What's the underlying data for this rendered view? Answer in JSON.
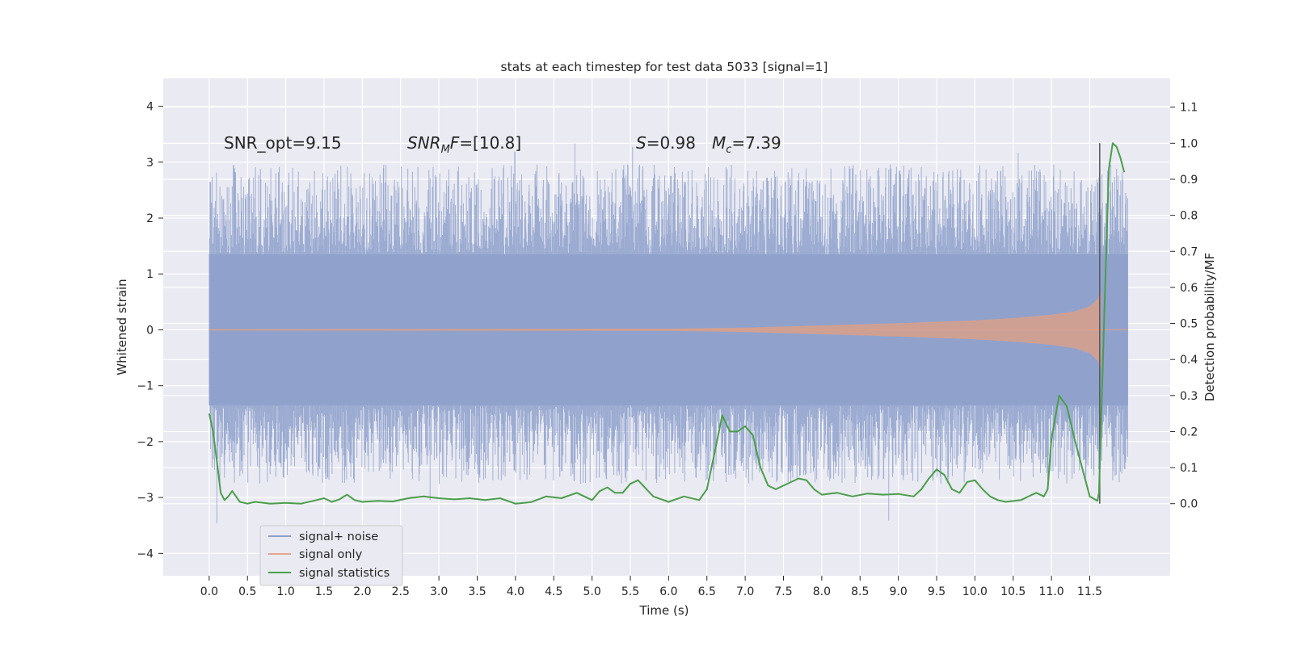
{
  "chart_data": {
    "type": "line",
    "title": "stats at each timestep for test data 5033 [signal=1]",
    "xlabel": "Time (s)",
    "ylabel_left": "Whitened strain",
    "ylabel_right": "Detection probability/MF",
    "xlim": [
      -0.6,
      12.55
    ],
    "ylim_left": [
      -4.4,
      4.5
    ],
    "ylim_right": [
      -0.2,
      1.18
    ],
    "x_ticks": [
      "0.0",
      "0.5",
      "1.0",
      "1.5",
      "2.0",
      "2.5",
      "3.0",
      "3.5",
      "4.0",
      "4.5",
      "5.0",
      "5.5",
      "6.0",
      "6.5",
      "7.0",
      "7.5",
      "8.0",
      "8.5",
      "9.0",
      "9.5",
      "10.0",
      "10.5",
      "11.0",
      "11.5"
    ],
    "y_ticks_left": [
      "4",
      "3",
      "2",
      "1",
      "0",
      "−1",
      "−2",
      "−3",
      "−4"
    ],
    "y_ticks_right": [
      "1.1",
      "1.0",
      "0.9",
      "0.8",
      "0.7",
      "0.6",
      "0.5",
      "0.4",
      "0.3",
      "0.2",
      "0.1",
      "0.0"
    ],
    "annotations": {
      "snr_opt": "SNR_opt=9.15",
      "snr_mf_label": "SNR",
      "snr_mf_sub": "M",
      "snr_mf_italic_tail": "F",
      "snr_mf_value": "=[10.8]",
      "s_label": "S",
      "s_value": "=0.98",
      "mc_label": "M",
      "mc_sub": "c",
      "mc_value": "=7.39"
    },
    "merger_time": 11.63,
    "legend": {
      "placement": "lower-left",
      "entries": [
        {
          "label": "signal+ noise",
          "color": "#8da0cb"
        },
        {
          "label": "signal only",
          "color": "#e5a58a"
        },
        {
          "label": "signal statistics",
          "color": "#4a9e4a"
        }
      ]
    },
    "series": [
      {
        "name": "signal+ noise",
        "axis": "left",
        "duration_s": 12.0,
        "band_min": -1.35,
        "band_max": 1.35,
        "typical_peak_max": 3.5,
        "typical_peak_min": -3.7
      },
      {
        "name": "signal only",
        "axis": "left",
        "envelope_t": [
          0.0,
          6.0,
          7.0,
          8.0,
          9.0,
          10.0,
          10.5,
          11.0,
          11.3,
          11.5,
          11.6,
          11.65
        ],
        "envelope_a": [
          0.01,
          0.02,
          0.04,
          0.08,
          0.12,
          0.17,
          0.21,
          0.27,
          0.33,
          0.42,
          0.55,
          0.7
        ]
      },
      {
        "name": "signal statistics",
        "axis": "right",
        "x": [
          0.0,
          0.05,
          0.1,
          0.15,
          0.2,
          0.25,
          0.3,
          0.4,
          0.5,
          0.6,
          0.8,
          1.0,
          1.2,
          1.4,
          1.5,
          1.6,
          1.7,
          1.8,
          1.9,
          2.0,
          2.2,
          2.4,
          2.6,
          2.8,
          3.0,
          3.2,
          3.4,
          3.6,
          3.8,
          4.0,
          4.2,
          4.4,
          4.6,
          4.8,
          5.0,
          5.1,
          5.2,
          5.3,
          5.4,
          5.5,
          5.6,
          5.8,
          6.0,
          6.2,
          6.4,
          6.5,
          6.6,
          6.7,
          6.8,
          6.9,
          7.0,
          7.1,
          7.2,
          7.3,
          7.4,
          7.5,
          7.6,
          7.7,
          7.8,
          7.9,
          8.0,
          8.2,
          8.4,
          8.6,
          8.8,
          9.0,
          9.2,
          9.3,
          9.4,
          9.5,
          9.6,
          9.7,
          9.8,
          9.9,
          10.0,
          10.1,
          10.2,
          10.3,
          10.4,
          10.6,
          10.8,
          10.9,
          10.95,
          11.0,
          11.1,
          11.2,
          11.3,
          11.4,
          11.5,
          11.6,
          11.62,
          11.7,
          11.75,
          11.8,
          11.85,
          11.9,
          11.95
        ],
        "y": [
          0.25,
          0.2,
          0.12,
          0.03,
          0.01,
          0.02,
          0.035,
          0.005,
          0.0,
          0.005,
          0.0,
          0.002,
          0.0,
          0.01,
          0.015,
          0.005,
          0.012,
          0.025,
          0.01,
          0.005,
          0.008,
          0.006,
          0.015,
          0.02,
          0.015,
          0.012,
          0.015,
          0.01,
          0.015,
          0.0,
          0.004,
          0.02,
          0.015,
          0.03,
          0.01,
          0.035,
          0.045,
          0.03,
          0.03,
          0.055,
          0.065,
          0.02,
          0.005,
          0.02,
          0.01,
          0.04,
          0.14,
          0.245,
          0.2,
          0.2,
          0.215,
          0.19,
          0.1,
          0.05,
          0.04,
          0.05,
          0.06,
          0.07,
          0.065,
          0.04,
          0.025,
          0.03,
          0.02,
          0.028,
          0.025,
          0.027,
          0.02,
          0.04,
          0.07,
          0.095,
          0.08,
          0.04,
          0.03,
          0.06,
          0.065,
          0.04,
          0.02,
          0.01,
          0.005,
          0.01,
          0.03,
          0.02,
          0.04,
          0.18,
          0.3,
          0.27,
          0.18,
          0.1,
          0.02,
          0.008,
          0.03,
          0.6,
          0.93,
          1.0,
          0.99,
          0.96,
          0.92
        ]
      }
    ]
  }
}
